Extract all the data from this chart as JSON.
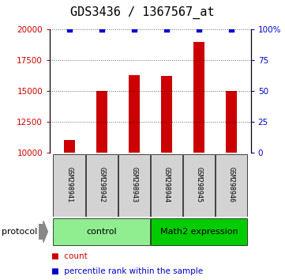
{
  "title": "GDS3436 / 1367567_at",
  "samples": [
    "GSM298941",
    "GSM298942",
    "GSM298943",
    "GSM298944",
    "GSM298945",
    "GSM298946"
  ],
  "counts": [
    11000,
    15000,
    16300,
    16200,
    19000,
    15000
  ],
  "percentile_ranks": [
    100,
    100,
    100,
    100,
    100,
    100
  ],
  "ylim_left": [
    10000,
    20000
  ],
  "ylim_right": [
    0,
    100
  ],
  "yticks_left": [
    10000,
    12500,
    15000,
    17500,
    20000
  ],
  "yticks_right": [
    0,
    25,
    50,
    75,
    100
  ],
  "bar_color": "#cc0000",
  "dot_color": "#0000cc",
  "bar_width": 0.35,
  "control_label": "control",
  "treatment_label": "Math2 expression",
  "protocol_label": "protocol",
  "legend_count_label": "count",
  "legend_percentile_label": "percentile rank within the sample",
  "bg_color": "#ffffff",
  "sample_bg_color": "#d3d3d3",
  "control_bg_color": "#90ee90",
  "treatment_bg_color": "#00cc00",
  "grid_style": "dotted",
  "title_fontsize": 11,
  "tick_fontsize": 7.5,
  "sample_fontsize": 6,
  "proto_fontsize": 8,
  "legend_fontsize": 7.5
}
